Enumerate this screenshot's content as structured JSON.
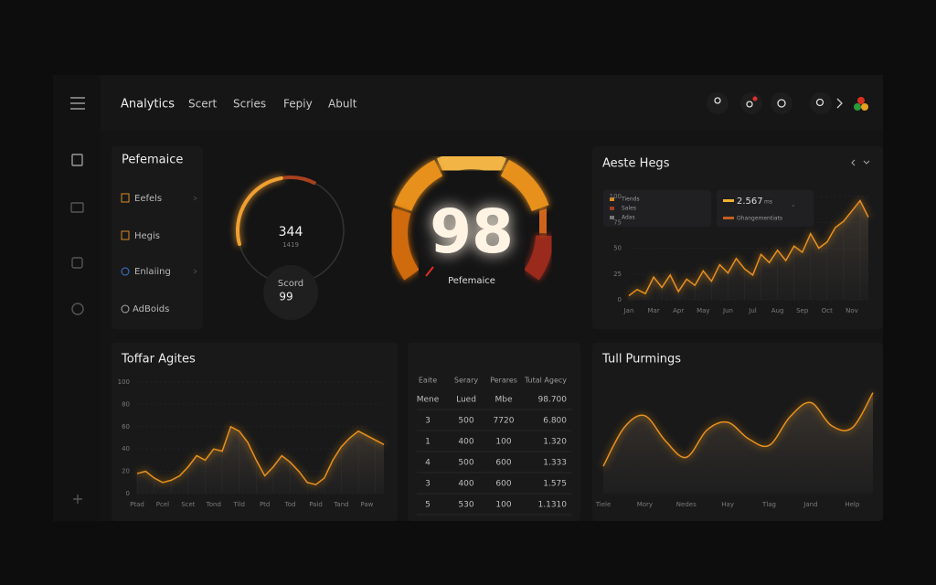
{
  "nav": {
    "brand": "Analytics",
    "links": [
      "Scert",
      "Scries",
      "Fepiy",
      "Abult"
    ]
  },
  "side_panel": {
    "title": "Pefemaice",
    "items": [
      "Eefels",
      "Hegis",
      "Enlaiing",
      "AdBoids"
    ]
  },
  "gauge_small": {
    "value": 344,
    "sub": 1419,
    "score_label": "Scord",
    "score": 99
  },
  "gauge_main": {
    "value": 98,
    "label": "Pefemaice"
  },
  "legend_top": {
    "rows": [
      "Tiends",
      "Sales",
      "Adas"
    ],
    "value": 2.567,
    "unit": "ms",
    "name": "Ohangementiats"
  },
  "table": {
    "header": [
      "Eaite",
      "Serary",
      "Perares",
      "Tutal Agecy"
    ],
    "rows": [
      [
        "Mene",
        "Lued",
        "Mbe",
        "98.700"
      ],
      [
        "3",
        "500",
        "7720",
        "6.800"
      ],
      [
        "1",
        "400",
        "100",
        "1.320"
      ],
      [
        "4",
        "500",
        "600",
        "1.333"
      ],
      [
        "3",
        "400",
        "600",
        "1.575"
      ],
      [
        "5",
        "530",
        "100",
        "1.1310"
      ]
    ]
  },
  "chart_data": [
    {
      "type": "area",
      "title": "Aeste Hegs",
      "color": "#e8901e",
      "categories": [
        "Jan",
        null,
        null,
        "Mar",
        null,
        null,
        "Apr",
        null,
        null,
        "May",
        null,
        null,
        "Jun",
        null,
        null,
        "Jul",
        null,
        null,
        "Aug",
        null,
        null,
        "Sep",
        null,
        null,
        "Oct",
        null,
        null,
        "Nov",
        null,
        null
      ],
      "values": [
        4,
        10,
        6,
        22,
        12,
        24,
        8,
        20,
        14,
        28,
        18,
        34,
        26,
        40,
        30,
        24,
        44,
        36,
        48,
        38,
        52,
        46,
        64,
        50,
        56,
        70,
        76,
        86,
        96,
        80
      ],
      "ylim": [
        0,
        100
      ],
      "yticks": [
        0,
        25,
        50,
        75,
        100
      ],
      "grid": true
    },
    {
      "type": "area",
      "title": "Toffar Agites",
      "color": "#e8901e",
      "categories": [
        "Ptad",
        null,
        null,
        "Pcel",
        null,
        null,
        "Scet",
        null,
        null,
        "Tond",
        null,
        null,
        "Tild",
        null,
        null,
        "Ptd",
        null,
        null,
        "Tod",
        null,
        null,
        "Paid",
        null,
        null,
        "Tand",
        null,
        null,
        "Paw",
        null,
        null
      ],
      "values": [
        18,
        20,
        14,
        10,
        12,
        16,
        24,
        34,
        30,
        40,
        38,
        60,
        56,
        46,
        30,
        16,
        24,
        34,
        28,
        20,
        10,
        8,
        14,
        30,
        42,
        50,
        56,
        52,
        48,
        44
      ],
      "ylim": [
        0,
        100
      ],
      "yticks": [
        0,
        20,
        40,
        60,
        80,
        100
      ],
      "grid": true
    },
    {
      "type": "area",
      "title": "Tull Purmings",
      "color": "#e8901e",
      "smooth": true,
      "categories": [
        "Tiele",
        null,
        "Mory",
        null,
        "Nedes",
        null,
        "Hay",
        null,
        "Tlag",
        null,
        "Jand",
        null,
        "Help",
        null
      ],
      "values": [
        25,
        60,
        71,
        48,
        33,
        58,
        65,
        50,
        44,
        70,
        83,
        62,
        60,
        92
      ],
      "ylim": [
        0,
        100
      ],
      "grid": false
    }
  ]
}
